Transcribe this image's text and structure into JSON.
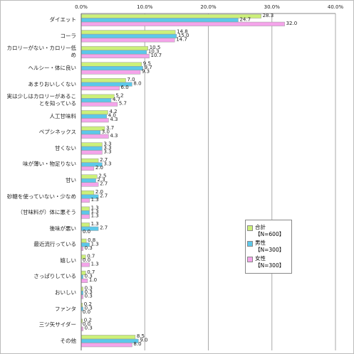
{
  "chart_data": {
    "type": "hbar",
    "categories": [
      "ダイエット",
      "コーラ",
      "カロリーがない・カロリー低め",
      "ヘルシー・体に良い",
      "あまりおいしくない",
      "実は少しはカロリーがあることを知っている",
      "人工甘味料",
      "ペプシネックス",
      "甘くない",
      "味が薄い・物足りない",
      "甘い",
      "砂糖を使っていない・少なめ",
      "（甘味料が）体に悪そう",
      "後味が悪い",
      "最近流行っている",
      "嬉しい",
      "さっぱりしている",
      "おいしい",
      "ファンタ",
      "三ツ矢サイダー",
      "その他"
    ],
    "series": [
      {
        "name": "合計【N=600】",
        "color": "#ccf07a",
        "values": [
          28.3,
          14.8,
          10.5,
          9.5,
          7.0,
          5.2,
          4.2,
          3.7,
          3.3,
          2.7,
          2.5,
          2.0,
          1.3,
          1.3,
          0.8,
          0.7,
          0.7,
          0.3,
          0.2,
          0.2,
          8.5
        ],
        "value_labels": [
          "28.3",
          "14.8",
          "10.5",
          "9.5",
          "7.0",
          "5.2",
          "4.2",
          "3.7",
          "3.3",
          "2.7",
          "2.5",
          "2.0",
          "1.3",
          "1.3",
          "0.8",
          "0.7",
          "0.7",
          "0.3",
          "0.2",
          "0.2",
          "8.5"
        ]
      },
      {
        "name": "男性【N=300】",
        "color": "#5cc8ea",
        "values": [
          24.7,
          15.0,
          10.3,
          9.7,
          8.0,
          4.7,
          4.0,
          3.0,
          3.3,
          3.3,
          2.3,
          2.7,
          1.3,
          2.7,
          1.3,
          0.0,
          0.3,
          0.3,
          0.3,
          0.0,
          9.0
        ],
        "value_labels": [
          "24.7",
          "15.0",
          "10.3",
          "9.7",
          "8.0",
          "4.7",
          "4.0",
          "3.0",
          "3.3",
          "3.3",
          "2.3",
          "2.7",
          "1.3",
          "2.7",
          "1.3",
          "0.0",
          "0.3",
          "0.3",
          "0.3",
          "0.0",
          "9.0"
        ]
      },
      {
        "name": "女性【N=300】",
        "color": "#f4a4ea",
        "values": [
          32.0,
          14.7,
          10.7,
          9.3,
          6.0,
          5.7,
          4.3,
          4.3,
          3.3,
          2.0,
          2.7,
          1.3,
          1.3,
          0.0,
          0.3,
          1.3,
          1.0,
          0.3,
          0.0,
          0.3,
          8.0
        ],
        "value_labels": [
          "32.0",
          "14.7",
          "10.7",
          "9.3",
          "6.0",
          "5.7",
          "4.3",
          "4.3",
          "3.3",
          "2.0",
          "2.7",
          "1.3",
          "1.3",
          "0.0",
          "0.3",
          "1.3",
          "1.0",
          "0.3",
          "0.0",
          "0.3",
          "8.0"
        ]
      }
    ],
    "xlim": [
      0,
      40
    ],
    "xticks": [
      {
        "value": 0,
        "label": "0.0%"
      },
      {
        "value": 10,
        "label": "10.0%"
      },
      {
        "value": 20,
        "label": "20.0%"
      },
      {
        "value": 30,
        "label": "30.0%"
      },
      {
        "value": 40,
        "label": "40.0%"
      }
    ],
    "grid": true
  }
}
